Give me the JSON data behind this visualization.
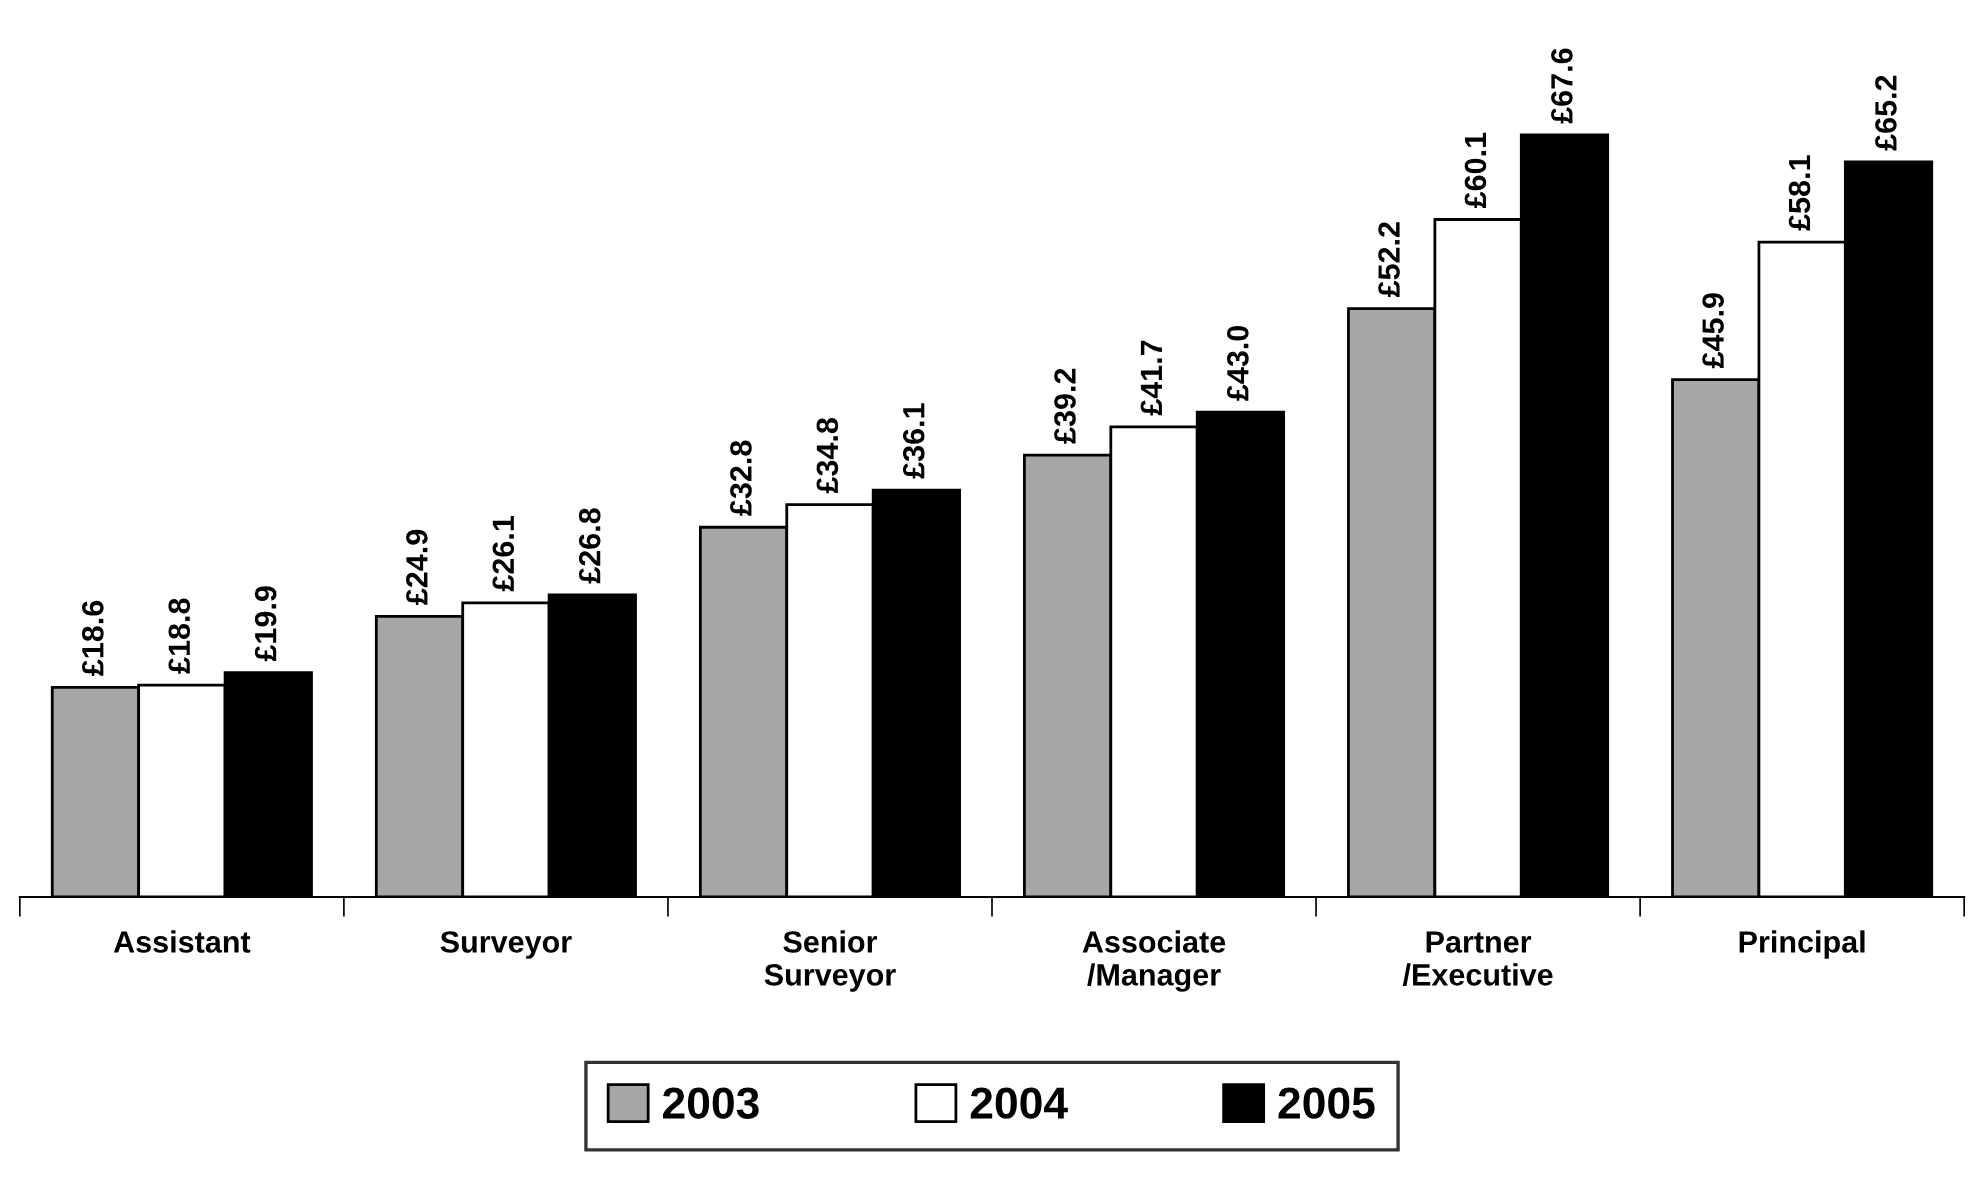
{
  "chart_data": {
    "type": "bar",
    "categories": [
      "Assistant",
      "Surveyor",
      "Senior\nSurveyor",
      "Associate\n/Manager",
      "Partner\n/Executive",
      "Principal"
    ],
    "series": [
      {
        "name": "2003",
        "color": "#a6a6a6",
        "values": [
          18.6,
          24.9,
          32.8,
          39.2,
          52.2,
          45.9
        ],
        "value_labels": [
          "£18.6",
          "£24.9",
          "£32.8",
          "£39.2",
          "£52.2",
          "£45.9"
        ]
      },
      {
        "name": "2004",
        "color": "#ffffff",
        "values": [
          18.8,
          26.1,
          34.8,
          41.7,
          60.1,
          58.1
        ],
        "value_labels": [
          "£18.8",
          "£26.1",
          "£34.8",
          "£41.7",
          "£60.1",
          "£58.1"
        ]
      },
      {
        "name": "2005",
        "color": "#000000",
        "values": [
          19.9,
          26.8,
          36.1,
          43.0,
          67.6,
          65.2
        ],
        "value_labels": [
          "£19.9",
          "£26.8",
          "£36.1",
          "£43.0",
          "£67.6",
          "£65.2"
        ]
      }
    ],
    "legend": "bottom",
    "grid": false,
    "tick_labels": "x"
  }
}
